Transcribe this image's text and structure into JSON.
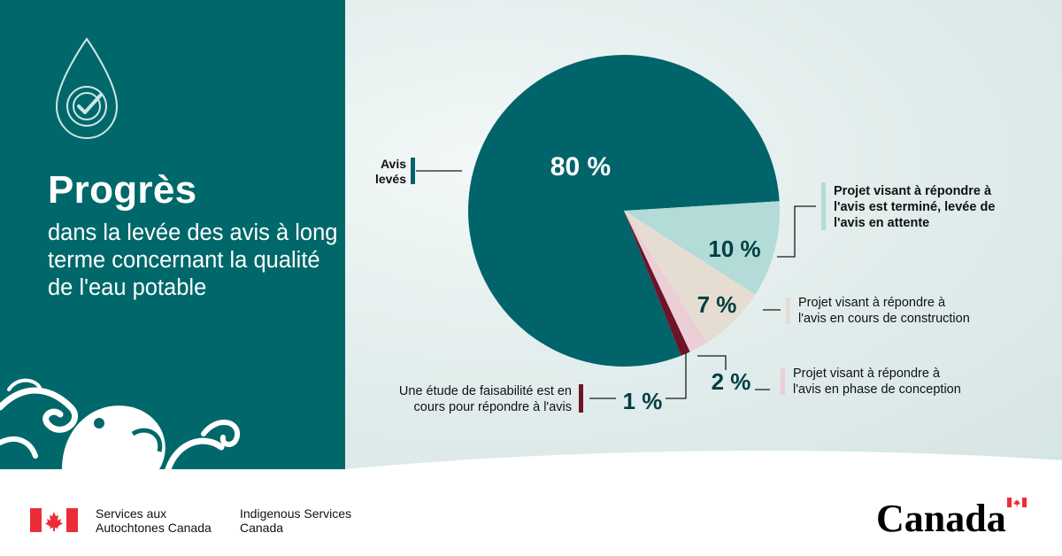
{
  "heading": "Progrès",
  "subheading": "dans la levée des avis à long terme concernant la qualité de l'eau potable",
  "chart_data": {
    "type": "pie",
    "title": "",
    "slices": [
      {
        "value": 80,
        "value_label": "80 %",
        "legend": "Avis levés",
        "color": "#00646a"
      },
      {
        "value": 10,
        "value_label": "10 %",
        "legend": "Projet visant à répondre à l'avis est terminé, levée de l'avis en attente",
        "color": "#b3dbd7"
      },
      {
        "value": 7,
        "value_label": "7 %",
        "legend": "Projet visant à répondre à l'avis en cours de construction",
        "color": "#e6ddd2"
      },
      {
        "value": 2,
        "value_label": "2 %",
        "legend": "Projet visant à répondre à l'avis en phase de conception",
        "color": "#eccfd6"
      },
      {
        "value": 1,
        "value_label": "1 %",
        "legend": "Une étude de faisabilité est en cours pour répondre à l'avis",
        "color": "#6e1428"
      }
    ],
    "legend_placement": "around"
  },
  "footer": {
    "dept_fr": "Services aux\nAutochtones Canada",
    "dept_en": "Indigenous Services\nCanada",
    "wordmark": "Canada",
    "flag_color": "#eb2d37"
  }
}
